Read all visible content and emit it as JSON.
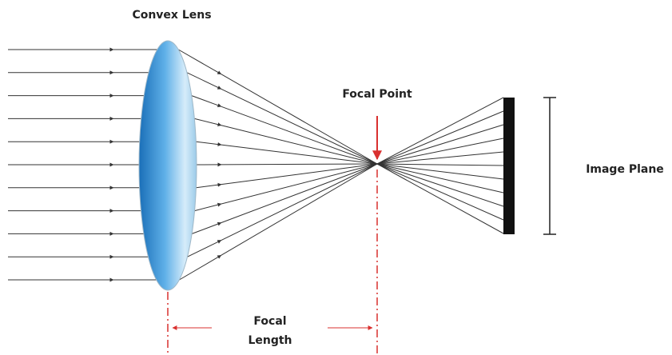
{
  "labels": {
    "lens": "Convex Lens",
    "focal_point": "Focal Point",
    "image_plane": "Image Plane",
    "focal_length": [
      "Focal",
      "Length"
    ]
  }
}
